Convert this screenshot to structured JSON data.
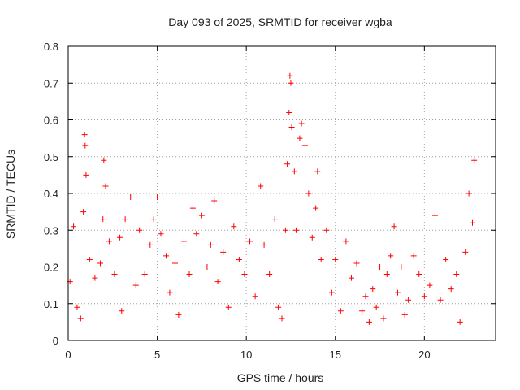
{
  "chart_data": {
    "type": "scatter",
    "title": "Day 093 of 2025, SRMTID for receiver wgba",
    "xlabel": "GPS time / hours",
    "ylabel": "SRMTID / TECUs",
    "xlim": [
      0,
      24
    ],
    "ylim": [
      0,
      0.8
    ],
    "xticks": [
      0,
      5,
      10,
      15,
      20
    ],
    "yticks": [
      0,
      0.1,
      0.2,
      0.3,
      0.4,
      0.5,
      0.6,
      0.7,
      0.8
    ],
    "xtick_labels": [
      "0",
      "5",
      "10",
      "15",
      "20"
    ],
    "ytick_labels": [
      "0",
      "0.1",
      "0.2",
      "0.3",
      "0.4",
      "0.5",
      "0.6",
      "0.7",
      "0.8"
    ],
    "grid": true,
    "marker": "+",
    "marker_color": "#ff0000",
    "series": [
      {
        "name": "SRMTID",
        "points": [
          [
            0.1,
            0.16
          ],
          [
            0.3,
            0.31
          ],
          [
            0.5,
            0.09
          ],
          [
            0.7,
            0.06
          ],
          [
            0.85,
            0.35
          ],
          [
            0.92,
            0.56
          ],
          [
            0.95,
            0.53
          ],
          [
            1.0,
            0.45
          ],
          [
            1.2,
            0.22
          ],
          [
            1.5,
            0.17
          ],
          [
            1.8,
            0.21
          ],
          [
            1.95,
            0.33
          ],
          [
            2.0,
            0.49
          ],
          [
            2.1,
            0.42
          ],
          [
            2.3,
            0.27
          ],
          [
            2.6,
            0.18
          ],
          [
            2.9,
            0.28
          ],
          [
            3.0,
            0.08
          ],
          [
            3.2,
            0.33
          ],
          [
            3.5,
            0.39
          ],
          [
            3.8,
            0.15
          ],
          [
            4.0,
            0.3
          ],
          [
            4.3,
            0.18
          ],
          [
            4.6,
            0.26
          ],
          [
            4.8,
            0.33
          ],
          [
            5.0,
            0.39
          ],
          [
            5.2,
            0.29
          ],
          [
            5.5,
            0.23
          ],
          [
            5.7,
            0.13
          ],
          [
            6.0,
            0.21
          ],
          [
            6.2,
            0.07
          ],
          [
            6.5,
            0.27
          ],
          [
            6.8,
            0.18
          ],
          [
            7.0,
            0.36
          ],
          [
            7.2,
            0.29
          ],
          [
            7.5,
            0.34
          ],
          [
            7.8,
            0.2
          ],
          [
            8.0,
            0.26
          ],
          [
            8.2,
            0.38
          ],
          [
            8.4,
            0.16
          ],
          [
            8.7,
            0.24
          ],
          [
            9.0,
            0.09
          ],
          [
            9.3,
            0.31
          ],
          [
            9.6,
            0.22
          ],
          [
            9.9,
            0.18
          ],
          [
            10.2,
            0.27
          ],
          [
            10.5,
            0.12
          ],
          [
            10.8,
            0.42
          ],
          [
            11.0,
            0.26
          ],
          [
            11.3,
            0.18
          ],
          [
            11.6,
            0.33
          ],
          [
            11.8,
            0.09
          ],
          [
            12.0,
            0.06
          ],
          [
            12.2,
            0.3
          ],
          [
            12.3,
            0.48
          ],
          [
            12.4,
            0.62
          ],
          [
            12.45,
            0.72
          ],
          [
            12.5,
            0.7
          ],
          [
            12.55,
            0.58
          ],
          [
            12.7,
            0.46
          ],
          [
            12.8,
            0.3
          ],
          [
            13.0,
            0.55
          ],
          [
            13.1,
            0.59
          ],
          [
            13.3,
            0.53
          ],
          [
            13.5,
            0.4
          ],
          [
            13.7,
            0.28
          ],
          [
            13.9,
            0.36
          ],
          [
            14.0,
            0.46
          ],
          [
            14.2,
            0.22
          ],
          [
            14.5,
            0.3
          ],
          [
            14.8,
            0.13
          ],
          [
            15.0,
            0.22
          ],
          [
            15.3,
            0.08
          ],
          [
            15.6,
            0.27
          ],
          [
            15.9,
            0.17
          ],
          [
            16.2,
            0.21
          ],
          [
            16.5,
            0.08
          ],
          [
            16.7,
            0.12
          ],
          [
            16.9,
            0.05
          ],
          [
            17.1,
            0.14
          ],
          [
            17.3,
            0.09
          ],
          [
            17.5,
            0.2
          ],
          [
            17.7,
            0.06
          ],
          [
            17.9,
            0.18
          ],
          [
            18.1,
            0.23
          ],
          [
            18.3,
            0.31
          ],
          [
            18.5,
            0.13
          ],
          [
            18.7,
            0.2
          ],
          [
            18.9,
            0.07
          ],
          [
            19.1,
            0.11
          ],
          [
            19.4,
            0.23
          ],
          [
            19.7,
            0.18
          ],
          [
            20.0,
            0.12
          ],
          [
            20.3,
            0.15
          ],
          [
            20.6,
            0.34
          ],
          [
            20.9,
            0.11
          ],
          [
            21.2,
            0.22
          ],
          [
            21.5,
            0.14
          ],
          [
            21.8,
            0.18
          ],
          [
            22.0,
            0.05
          ],
          [
            22.3,
            0.24
          ],
          [
            22.5,
            0.4
          ],
          [
            22.7,
            0.32
          ],
          [
            22.8,
            0.49
          ]
        ]
      }
    ]
  }
}
